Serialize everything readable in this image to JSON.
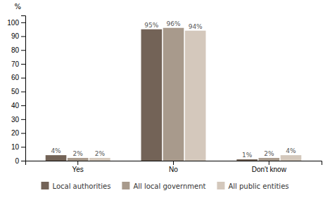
{
  "chart_data": {
    "type": "bar",
    "categories": [
      "Yes",
      "No",
      "Don't know"
    ],
    "series": [
      {
        "name": "Local authorities",
        "color": "#736357",
        "values": [
          4,
          95,
          1
        ],
        "value_labels": [
          "4%",
          "95%",
          "1%"
        ]
      },
      {
        "name": "All local government",
        "color": "#a89a8c",
        "values": [
          2,
          96,
          2
        ],
        "value_labels": [
          "2%",
          "96%",
          "2%"
        ]
      },
      {
        "name": "All public entities",
        "color": "#d4c8bc",
        "values": [
          2,
          94,
          4
        ],
        "value_labels": [
          "2%",
          "94%",
          "4%"
        ]
      }
    ],
    "ylabel": "%",
    "ylim": [
      0,
      105
    ],
    "yticks": [
      0,
      10,
      20,
      30,
      40,
      50,
      60,
      70,
      80,
      90,
      100
    ],
    "grid": false,
    "legend": "bottom",
    "data_labels": true
  }
}
